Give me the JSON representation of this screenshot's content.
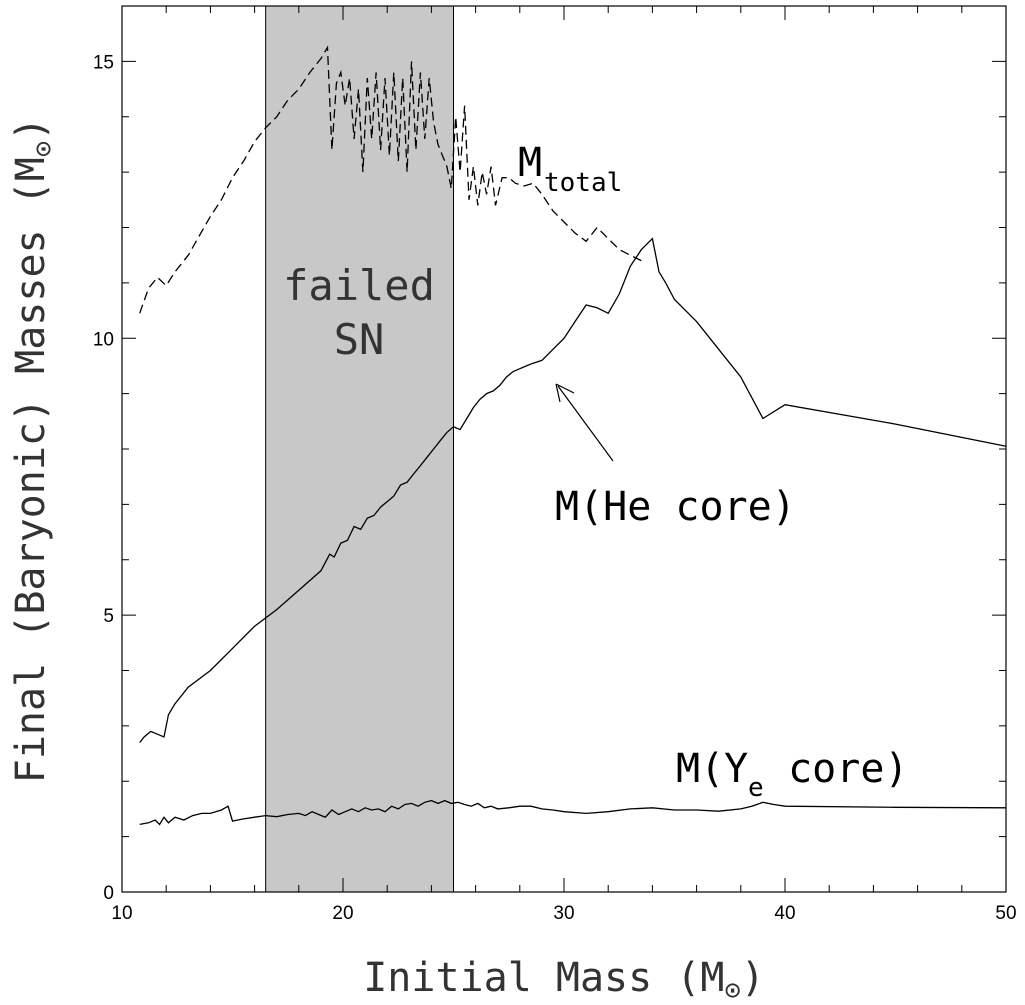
{
  "chart_data": {
    "type": "line",
    "xlabel": "Initial Mass (M",
    "xlabel_sun": "⊙",
    "xlabel_close": ")",
    "ylabel": "Final (Baryonic) Masses (M",
    "ylabel_sun": "⊙",
    "ylabel_close": ")",
    "xlim": [
      10,
      50
    ],
    "ylim": [
      0,
      16
    ],
    "x_ticks": [
      10,
      20,
      30,
      40,
      50
    ],
    "y_ticks": [
      0,
      5,
      10,
      15
    ],
    "grid": false,
    "shaded_band": {
      "x_range": [
        16.5,
        25
      ],
      "label_line1": "failed",
      "label_line2": "SN",
      "color": "#c8c8c8"
    },
    "annotations": {
      "total_main": "M",
      "total_sub": "total",
      "he_core": "M(He core)",
      "ye_pre": "M(Y",
      "ye_sub": "e",
      "ye_post": " core)"
    },
    "series": [
      {
        "style": "dashed",
        "x": [
          10.8,
          11.2,
          11.6,
          12.0,
          12.4,
          13.0,
          13.5,
          14.0,
          14.5,
          15.0,
          15.5,
          16.0,
          16.5,
          17.0,
          17.5,
          18.0,
          18.5,
          19.0,
          19.3,
          19.5,
          19.7,
          19.9,
          20.1,
          20.3,
          20.5,
          20.7,
          20.9,
          21.1,
          21.3,
          21.5,
          21.7,
          21.9,
          22.1,
          22.3,
          22.5,
          22.7,
          22.9,
          23.1,
          23.3,
          23.5,
          23.7,
          23.9,
          24.1,
          24.3,
          24.5,
          24.7,
          24.9,
          25.1,
          25.3,
          25.5,
          25.7,
          25.9,
          26.1,
          26.3,
          26.5,
          26.7,
          26.9,
          27.2,
          27.5,
          27.8,
          28.2,
          28.6,
          29.0,
          29.5,
          30.0,
          30.5,
          31.0,
          31.5,
          32.0,
          32.5,
          33.0,
          33.5
        ],
        "y": [
          10.45,
          10.9,
          11.1,
          10.95,
          11.2,
          11.5,
          11.85,
          12.2,
          12.5,
          12.9,
          13.2,
          13.55,
          13.8,
          14.0,
          14.3,
          14.5,
          14.8,
          15.05,
          15.25,
          13.4,
          14.6,
          14.8,
          14.2,
          14.7,
          13.6,
          14.5,
          13.0,
          14.7,
          13.6,
          14.8,
          13.4,
          14.7,
          13.3,
          14.8,
          13.2,
          14.7,
          13.0,
          15.0,
          13.4,
          14.8,
          13.6,
          14.7,
          13.9,
          13.5,
          13.3,
          13.1,
          12.7,
          14.0,
          13.0,
          14.2,
          12.5,
          13.1,
          12.4,
          13.0,
          12.6,
          13.1,
          12.4,
          12.9,
          12.9,
          12.8,
          12.75,
          12.8,
          12.6,
          12.3,
          12.1,
          11.9,
          11.75,
          12.0,
          11.8,
          11.6,
          11.5,
          11.4
        ]
      },
      {
        "style": "solid",
        "x": [
          10.8,
          11.0,
          11.3,
          11.6,
          11.9,
          12.1,
          12.4,
          13.0,
          14.0,
          15.0,
          16.0,
          17.0,
          18.0,
          19.0,
          19.4,
          19.6,
          19.9,
          20.2,
          20.5,
          20.8,
          21.1,
          21.4,
          21.7,
          22.0,
          22.3,
          22.6,
          22.9,
          23.2,
          23.5,
          23.8,
          24.1,
          24.4,
          24.7,
          25.0,
          25.3,
          25.6,
          25.9,
          26.2,
          26.5,
          26.8,
          27.1,
          27.4,
          27.7,
          28.0,
          28.3,
          28.6,
          29.0,
          29.5,
          30.0,
          30.5,
          31.0,
          31.5,
          32.0,
          32.5,
          33.0,
          33.5,
          34.0,
          34.3,
          34.6,
          35.0,
          36.0,
          37.0,
          38.0,
          39.0,
          40.0,
          45.0,
          50.0
        ],
        "y": [
          2.7,
          2.8,
          2.9,
          2.85,
          2.8,
          3.2,
          3.4,
          3.7,
          4.0,
          4.4,
          4.8,
          5.1,
          5.45,
          5.8,
          6.1,
          6.05,
          6.3,
          6.35,
          6.6,
          6.55,
          6.75,
          6.8,
          6.95,
          7.05,
          7.15,
          7.35,
          7.4,
          7.55,
          7.7,
          7.85,
          8.0,
          8.15,
          8.3,
          8.4,
          8.35,
          8.55,
          8.75,
          8.9,
          9.0,
          9.05,
          9.15,
          9.3,
          9.4,
          9.45,
          9.5,
          9.55,
          9.6,
          9.8,
          10.0,
          10.3,
          10.6,
          10.55,
          10.45,
          10.8,
          11.3,
          11.6,
          11.8,
          11.2,
          11.0,
          10.7,
          10.3,
          9.8,
          9.3,
          8.55,
          8.8,
          8.45,
          8.05
        ]
      },
      {
        "style": "solid",
        "x": [
          10.8,
          11.2,
          11.5,
          11.7,
          11.9,
          12.1,
          12.4,
          12.8,
          13.2,
          13.6,
          14.0,
          14.5,
          14.8,
          15.0,
          15.5,
          16.0,
          16.5,
          17.0,
          17.5,
          18.0,
          18.3,
          18.6,
          18.9,
          19.2,
          19.5,
          19.8,
          20.1,
          20.4,
          20.7,
          21.0,
          21.3,
          21.6,
          21.9,
          22.2,
          22.5,
          22.8,
          23.1,
          23.4,
          23.7,
          24.0,
          24.3,
          24.6,
          24.9,
          25.2,
          25.5,
          25.8,
          26.1,
          26.4,
          26.7,
          27.0,
          27.5,
          28.0,
          28.5,
          29.0,
          29.5,
          30.0,
          31.0,
          32.0,
          33.0,
          34.0,
          35.0,
          36.0,
          37.0,
          38.0,
          38.5,
          39.0,
          39.5,
          40.0,
          45.0,
          50.0
        ],
        "y": [
          1.22,
          1.25,
          1.3,
          1.22,
          1.35,
          1.25,
          1.35,
          1.3,
          1.38,
          1.42,
          1.42,
          1.48,
          1.55,
          1.28,
          1.32,
          1.35,
          1.38,
          1.36,
          1.4,
          1.42,
          1.38,
          1.45,
          1.4,
          1.35,
          1.48,
          1.4,
          1.45,
          1.5,
          1.45,
          1.52,
          1.48,
          1.5,
          1.45,
          1.55,
          1.5,
          1.58,
          1.6,
          1.55,
          1.62,
          1.65,
          1.6,
          1.65,
          1.6,
          1.62,
          1.58,
          1.55,
          1.6,
          1.52,
          1.55,
          1.5,
          1.52,
          1.55,
          1.55,
          1.5,
          1.48,
          1.45,
          1.42,
          1.45,
          1.5,
          1.52,
          1.48,
          1.48,
          1.46,
          1.5,
          1.55,
          1.62,
          1.58,
          1.55,
          1.53,
          1.52
        ]
      }
    ]
  }
}
